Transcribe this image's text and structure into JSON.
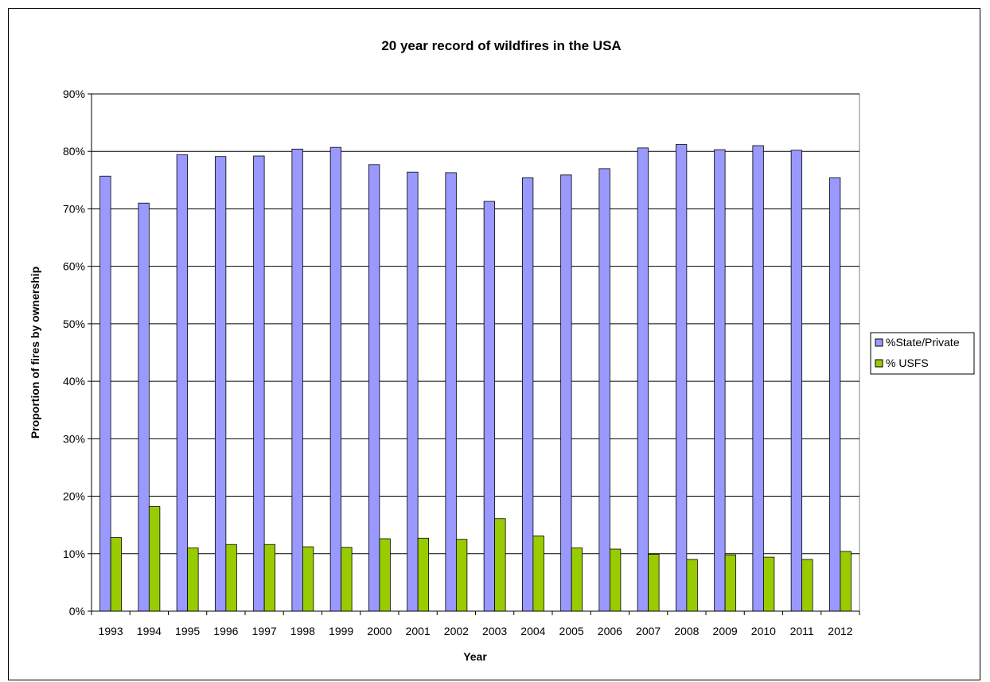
{
  "chart_data": {
    "type": "bar",
    "title": "20 year record of wildfires in the USA",
    "xlabel": "Year",
    "ylabel": "Proportion of fires by ownership",
    "ylim": [
      0,
      90
    ],
    "y_ticks": [
      "0%",
      "10%",
      "20%",
      "30%",
      "40%",
      "50%",
      "60%",
      "70%",
      "80%",
      "90%"
    ],
    "grid": true,
    "legend_position": "right",
    "categories": [
      "1993",
      "1994",
      "1995",
      "1996",
      "1997",
      "1998",
      "1999",
      "2000",
      "2001",
      "2002",
      "2003",
      "2004",
      "2005",
      "2006",
      "2007",
      "2008",
      "2009",
      "2010",
      "2011",
      "2012"
    ],
    "series": [
      {
        "name": "%State/Private",
        "color": "#9999ff",
        "values": [
          75.7,
          71.0,
          79.4,
          79.1,
          79.2,
          80.4,
          80.7,
          77.7,
          76.4,
          76.3,
          71.3,
          75.4,
          75.9,
          77.0,
          80.6,
          81.2,
          80.3,
          81.0,
          80.2,
          75.4
        ]
      },
      {
        "name": "% USFS",
        "color": "#99cc00",
        "values": [
          12.8,
          18.2,
          11.0,
          11.6,
          11.6,
          11.2,
          11.1,
          12.6,
          12.7,
          12.5,
          16.1,
          13.1,
          11.0,
          10.8,
          9.9,
          9.0,
          9.8,
          9.4,
          9.0,
          10.4
        ]
      }
    ]
  }
}
